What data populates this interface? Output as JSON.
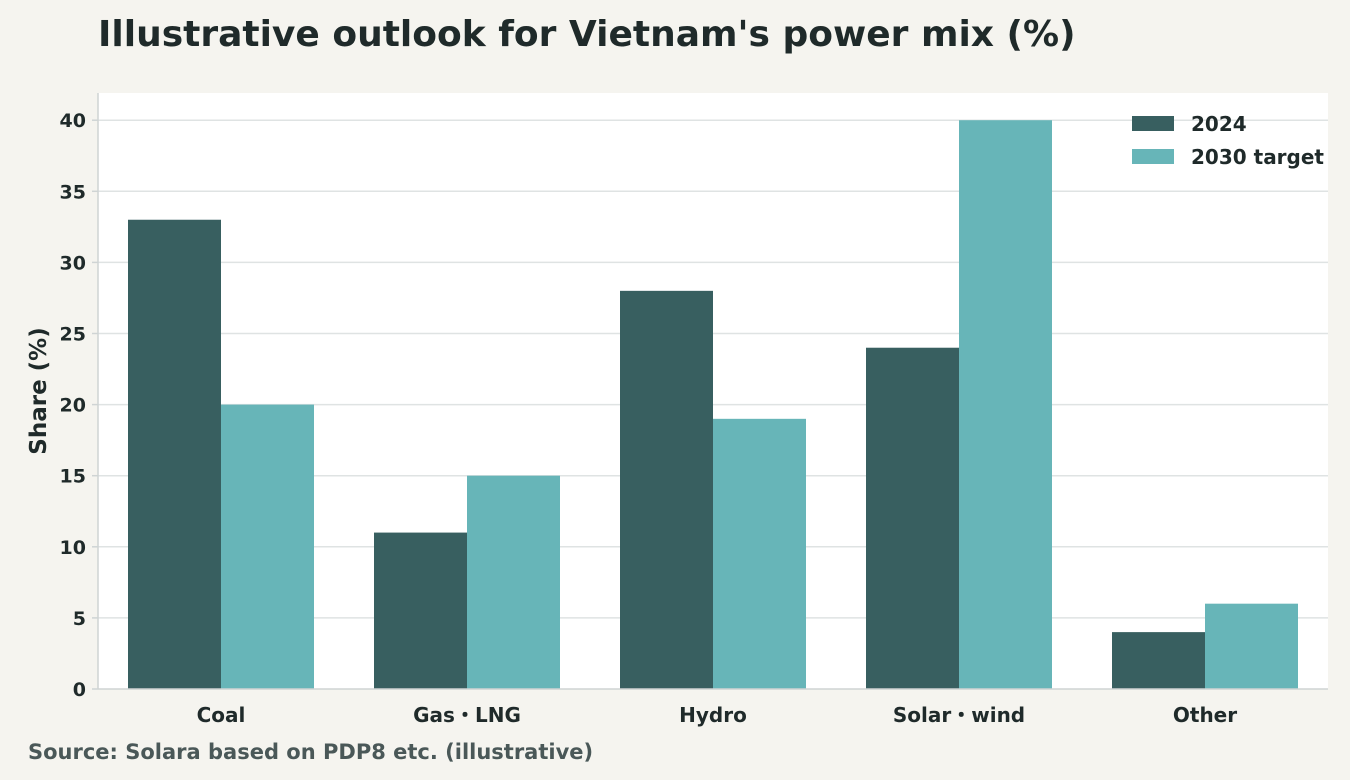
{
  "title": "Illustrative outlook for Vietnam's power mix (%)",
  "source": "Source: Solara based on PDP8 etc. (illustrative)",
  "colors": {
    "series_2024": "#385f60",
    "series_2030": "#67b5b8",
    "plot_bg": "#ffffff",
    "page_bg": "#f5f4ef",
    "grid": "#dfe3e3",
    "axis": "#cfd4d4",
    "text": "#1f2a2a"
  },
  "chart_data": {
    "type": "bar",
    "title": "Illustrative outlook for Vietnam's power mix (%)",
    "xlabel": "",
    "ylabel": "Share (%)",
    "categories": [
      "Coal",
      "Gas・LNG",
      "Hydro",
      "Solar・wind",
      "Other"
    ],
    "series": [
      {
        "name": "2024",
        "values": [
          33,
          11,
          28,
          24,
          4
        ]
      },
      {
        "name": "2030 target",
        "values": [
          20,
          15,
          19,
          40,
          6
        ]
      }
    ],
    "ylim": [
      0,
      42
    ],
    "yticks": [
      0,
      5,
      10,
      15,
      20,
      25,
      30,
      35,
      40
    ],
    "grid": true,
    "legend_position": "top-right"
  }
}
